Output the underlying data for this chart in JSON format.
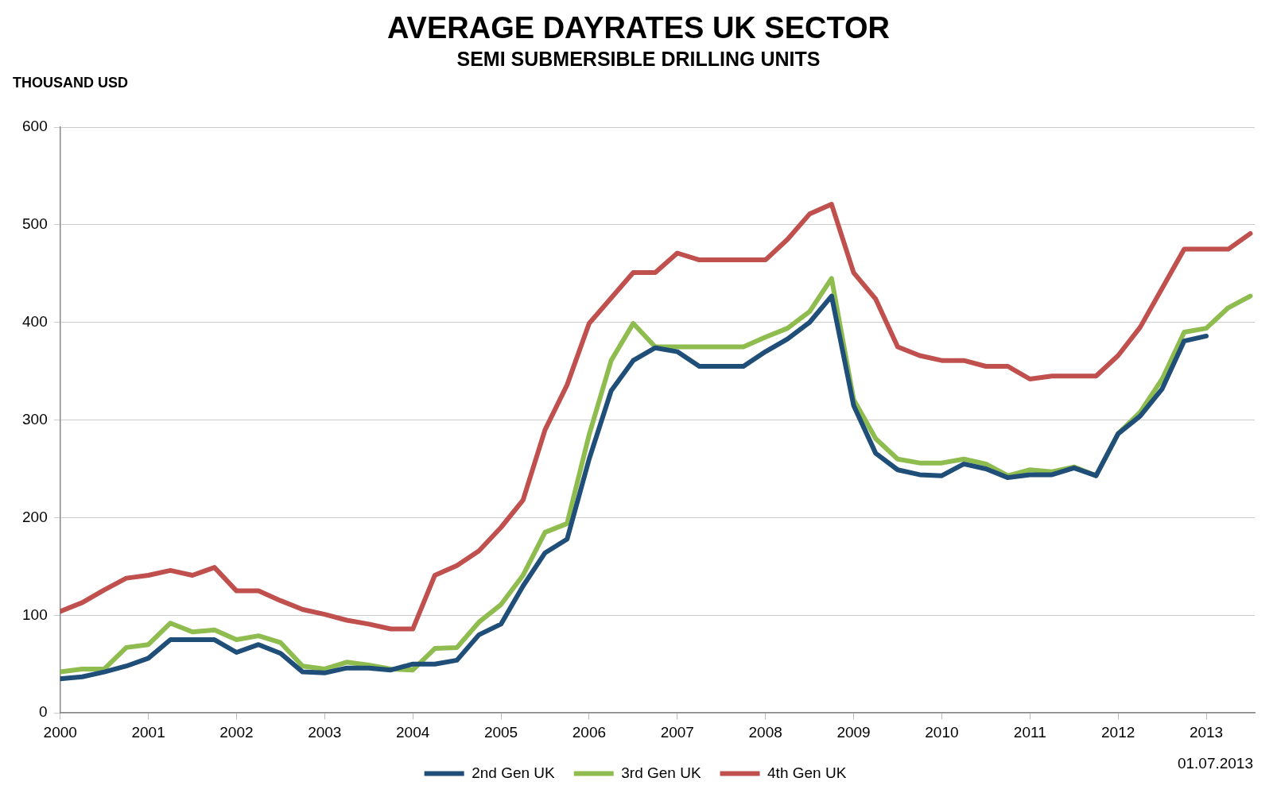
{
  "chart_data": {
    "type": "line",
    "title": "AVERAGE DAYRATES UK SECTOR",
    "subtitle": "SEMI SUBMERSIBLE DRILLING UNITS",
    "ylabel": "THOUSAND USD",
    "annotations": [
      "01.07.2013"
    ],
    "x": [
      2000,
      2000.25,
      2000.5,
      2000.75,
      2001,
      2001.25,
      2001.5,
      2001.75,
      2002,
      2002.25,
      2002.5,
      2002.75,
      2003,
      2003.25,
      2003.5,
      2003.75,
      2004,
      2004.25,
      2004.5,
      2004.75,
      2005,
      2005.25,
      2005.5,
      2005.75,
      2006,
      2006.25,
      2006.5,
      2006.75,
      2007,
      2007.25,
      2007.5,
      2007.75,
      2008,
      2008.25,
      2008.5,
      2008.75,
      2009,
      2009.25,
      2009.5,
      2009.75,
      2010,
      2010.25,
      2010.5,
      2010.75,
      2011,
      2011.25,
      2011.5,
      2011.75,
      2012,
      2012.25,
      2012.5,
      2012.75,
      2013,
      2013.25,
      2013.5
    ],
    "series": [
      {
        "name": "2nd Gen UK",
        "color": "#1f4e79",
        "values": [
          35,
          37,
          42,
          48,
          56,
          75,
          75,
          75,
          62,
          70,
          61,
          42,
          41,
          46,
          46,
          44,
          50,
          50,
          54,
          80,
          91,
          130,
          164,
          178,
          260,
          330,
          361,
          374,
          370,
          355,
          355,
          355,
          370,
          383,
          400,
          427,
          315,
          266,
          249,
          244,
          243,
          255,
          250,
          241,
          244,
          244,
          251,
          243,
          286,
          304,
          332,
          381,
          386,
          null,
          null
        ]
      },
      {
        "name": "3rd Gen UK",
        "color": "#8fbc4f",
        "values": [
          42,
          45,
          45,
          67,
          70,
          92,
          83,
          85,
          75,
          79,
          72,
          48,
          45,
          52,
          49,
          45,
          44,
          66,
          67,
          93,
          111,
          141,
          185,
          194,
          285,
          361,
          399,
          375,
          375,
          375,
          375,
          375,
          385,
          394,
          411,
          445,
          321,
          281,
          260,
          256,
          256,
          260,
          255,
          243,
          249,
          247,
          252,
          243,
          286,
          308,
          342,
          390,
          394,
          415,
          427
        ]
      },
      {
        "name": "4th Gen UK",
        "color": "#c0504d",
        "values": [
          104,
          113,
          126,
          138,
          141,
          146,
          141,
          149,
          125,
          125,
          115,
          106,
          101,
          95,
          91,
          86,
          86,
          141,
          151,
          166,
          190,
          218,
          290,
          336,
          399,
          425,
          451,
          451,
          471,
          464,
          464,
          464,
          464,
          485,
          511,
          521,
          451,
          424,
          375,
          366,
          361,
          361,
          355,
          355,
          342,
          345,
          345,
          345,
          366,
          395,
          435,
          475,
          475,
          475,
          491
        ]
      }
    ],
    "xlim": [
      2000,
      2013.55
    ],
    "xticks": [
      2000,
      2001,
      2002,
      2003,
      2004,
      2005,
      2006,
      2007,
      2008,
      2009,
      2010,
      2011,
      2012,
      2013
    ],
    "ylim": [
      0,
      600
    ],
    "yticks": [
      0,
      100,
      200,
      300,
      400,
      500,
      600
    ],
    "grid": "y",
    "legend": "bottom",
    "marker": "none",
    "line_style": "solid"
  }
}
